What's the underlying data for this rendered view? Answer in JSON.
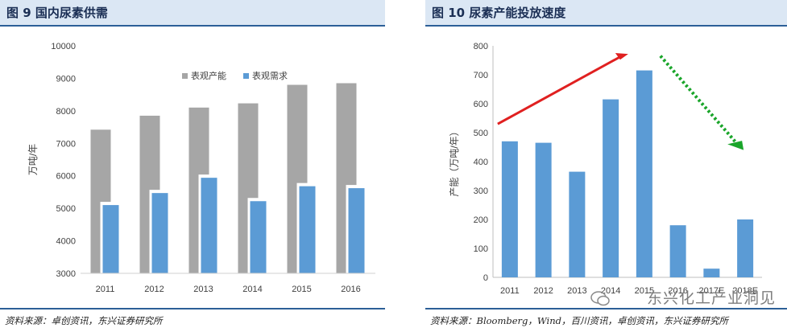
{
  "left": {
    "title": "图 9 国内尿素供需",
    "source": "资料来源：卓创资讯，东兴证券研究所",
    "chart_data": {
      "type": "bar",
      "categories": [
        "2011",
        "2012",
        "2013",
        "2014",
        "2015",
        "2016"
      ],
      "series": [
        {
          "name": "表观产能",
          "color": "#a6a6a6",
          "values": [
            7420,
            7850,
            8100,
            8230,
            8800,
            8850
          ]
        },
        {
          "name": "表观需求",
          "color": "#5b9bd5",
          "values": [
            5100,
            5470,
            5940,
            5220,
            5680,
            5620
          ]
        }
      ],
      "ylabel": "万吨/年",
      "ylim": [
        3000,
        10000
      ],
      "yticks": [
        "3000",
        "4000",
        "5000",
        "6000",
        "7000",
        "8000",
        "9000",
        "10000"
      ],
      "legend_position": "top"
    }
  },
  "right": {
    "title": "图 10 尿素产能投放速度",
    "source": "资料来源：Bloomberg，Wind，百川资讯，卓创资讯，东兴证券研究所",
    "chart_data": {
      "type": "bar",
      "categories": [
        "2011",
        "2012",
        "2013",
        "2014",
        "2015",
        "2016",
        "2017E",
        "2018E"
      ],
      "values": [
        470,
        465,
        365,
        615,
        715,
        180,
        30,
        200
      ],
      "color": "#5b9bd5",
      "ylabel": "产能（万吨/年）",
      "ylim": [
        0,
        800
      ],
      "yticks": [
        "0",
        "100",
        "200",
        "300",
        "400",
        "500",
        "600",
        "700",
        "800"
      ],
      "annotations": [
        {
          "type": "arrow",
          "style": "solid",
          "color": "#e02020"
        },
        {
          "type": "arrow",
          "style": "dotted",
          "color": "#1aa52a"
        }
      ]
    }
  },
  "watermark": "东兴化工产业洞见"
}
